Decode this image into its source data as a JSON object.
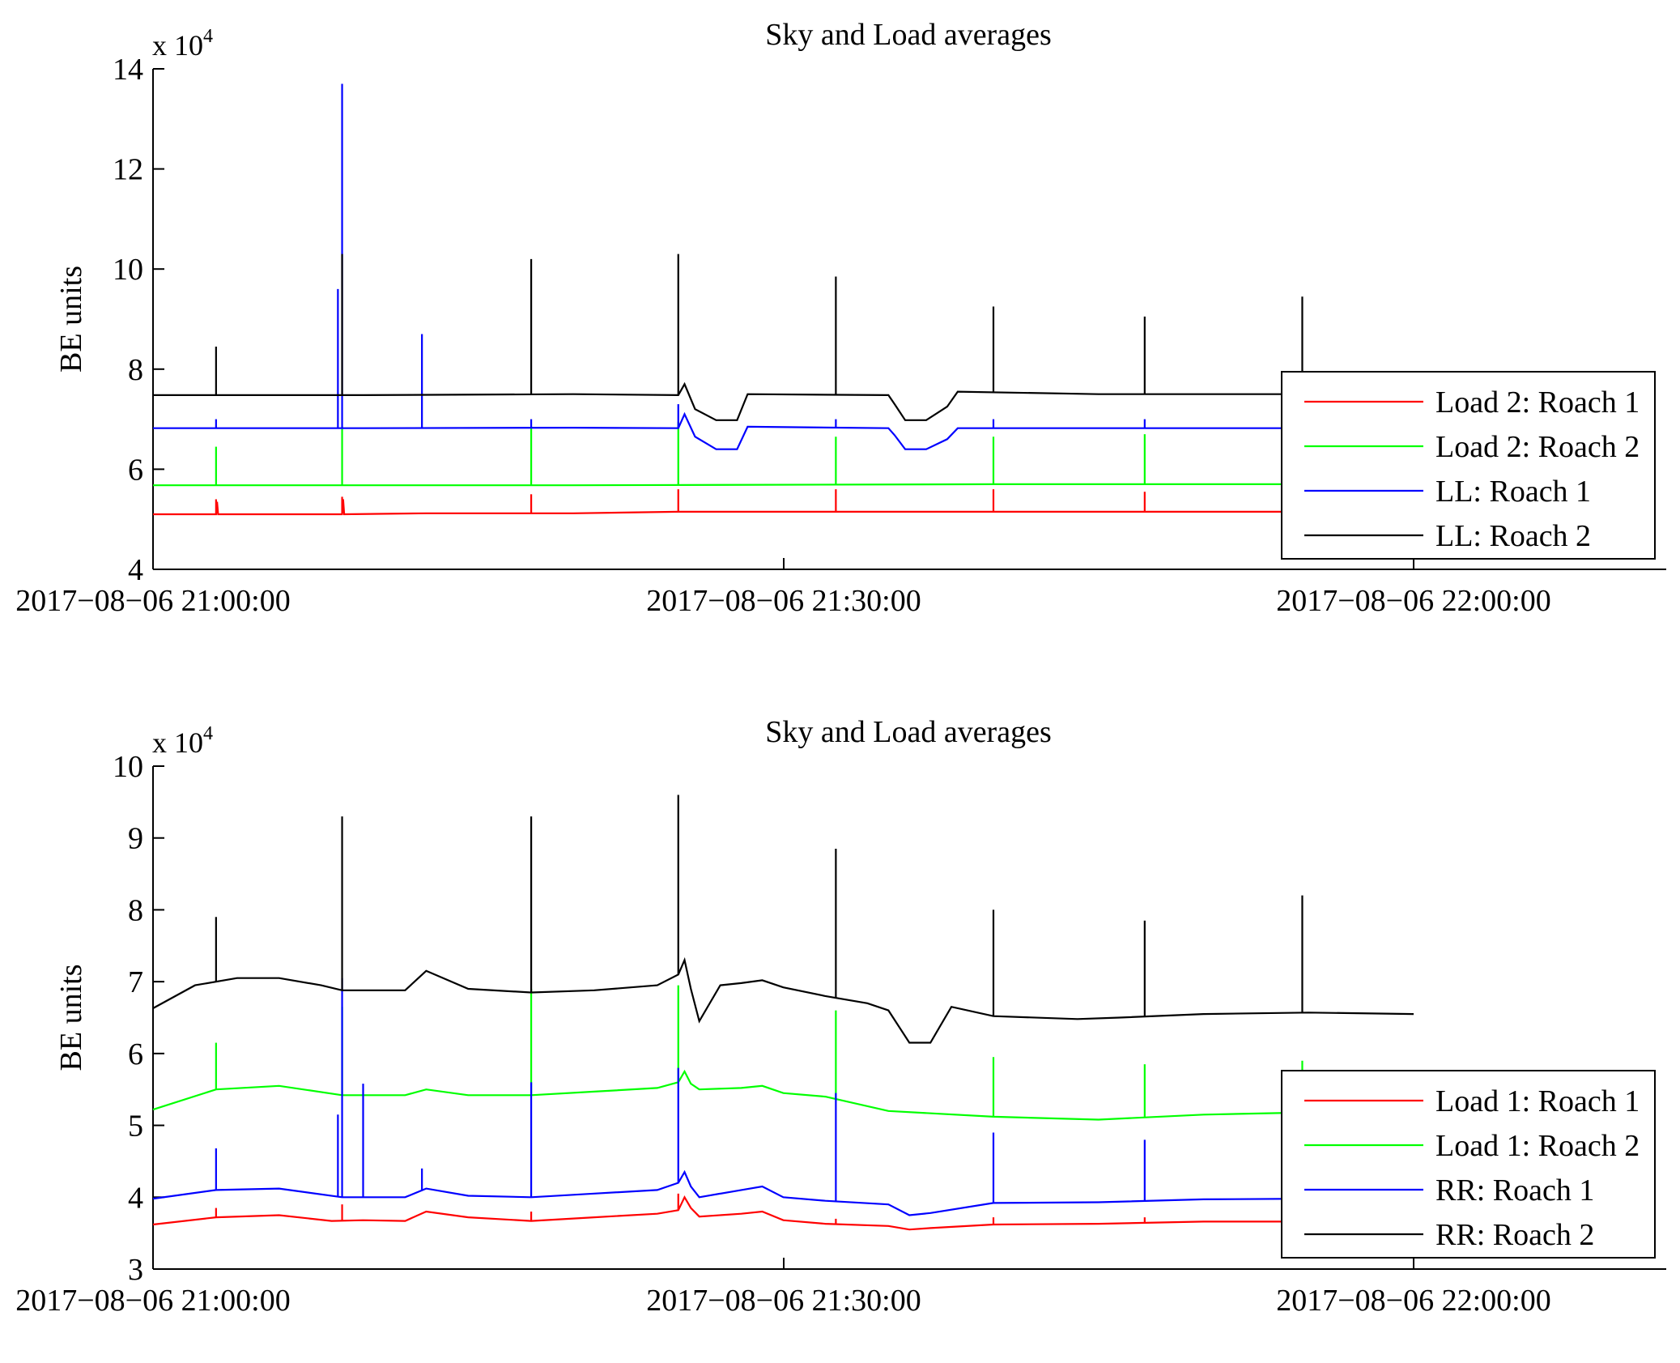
{
  "chart_data": [
    {
      "type": "line",
      "title": "Sky and Load averages",
      "xlabel": "",
      "ylabel": "BE units",
      "y_multiplier": "x 10",
      "y_multiplier_exp": "4",
      "ylim": [
        4,
        14
      ],
      "yticks": [
        "4",
        "6",
        "8",
        "10",
        "12",
        "14"
      ],
      "xlim": [
        "2017-08-06 21:00:00",
        "2017-08-06 22:00:00"
      ],
      "xticks": [
        "2017−08−06 21:00:00",
        "2017−08−06 21:30:00",
        "2017−08−06 22:00:00"
      ],
      "x_unit": "minutes after 2017-08-06 21:00:00",
      "grid": false,
      "legend_position": "bottom-right",
      "series": [
        {
          "name": "Load 2: Roach 1",
          "color": "#ff0000",
          "x": [
            0,
            3,
            3.05,
            3.1,
            9,
            9.05,
            9.1,
            13,
            15,
            20,
            25,
            30,
            40,
            50,
            55,
            60
          ],
          "y": [
            5.1,
            5.1,
            5.35,
            5.1,
            5.1,
            5.4,
            5.1,
            5.12,
            5.12,
            5.12,
            5.15,
            5.15,
            5.15,
            5.15,
            5.15,
            5.15
          ],
          "spikes": [
            [
              3,
              5.4
            ],
            [
              9,
              5.45
            ],
            [
              18,
              5.5
            ],
            [
              25,
              5.6
            ],
            [
              32.5,
              5.6
            ],
            [
              40,
              5.6
            ],
            [
              47.2,
              5.55
            ],
            [
              54.7,
              5.5
            ]
          ]
        },
        {
          "name": "Load 2: Roach 2",
          "color": "#00ff00",
          "x": [
            0,
            20,
            40,
            60
          ],
          "y": [
            5.68,
            5.68,
            5.7,
            5.7
          ],
          "spikes": [
            [
              3,
              6.45
            ],
            [
              9,
              6.85
            ],
            [
              18,
              6.85
            ],
            [
              25,
              6.95
            ],
            [
              32.5,
              6.65
            ],
            [
              40,
              6.65
            ],
            [
              47.2,
              6.7
            ],
            [
              54.7,
              6.6
            ]
          ]
        },
        {
          "name": "LL: Roach 1",
          "color": "#0000ff",
          "x": [
            0,
            10,
            20,
            25,
            25.3,
            25.8,
            26.8,
            27.8,
            28.3,
            35,
            35.3,
            35.8,
            36.8,
            37.8,
            38.3,
            45,
            60
          ],
          "y": [
            6.82,
            6.82,
            6.83,
            6.82,
            7.1,
            6.65,
            6.4,
            6.4,
            6.85,
            6.82,
            6.68,
            6.4,
            6.4,
            6.6,
            6.82,
            6.82,
            6.82
          ],
          "spikes": [
            [
              3,
              7.0
            ],
            [
              8.8,
              9.6
            ],
            [
              9,
              13.7
            ],
            [
              12.8,
              8.7
            ],
            [
              18,
              7.0
            ],
            [
              25,
              7.3
            ],
            [
              32.5,
              7.0
            ],
            [
              40,
              7.0
            ],
            [
              47.2,
              7.0
            ],
            [
              54.7,
              7.0
            ]
          ]
        },
        {
          "name": "LL: Roach 2",
          "color": "#000000",
          "x": [
            0,
            10,
            20,
            25,
            25.3,
            25.8,
            26.8,
            27.8,
            28.3,
            35,
            35.3,
            35.8,
            36.8,
            37.8,
            38.3,
            45,
            60
          ],
          "y": [
            7.48,
            7.48,
            7.5,
            7.48,
            7.7,
            7.2,
            6.98,
            6.98,
            7.5,
            7.48,
            7.3,
            6.98,
            6.98,
            7.25,
            7.55,
            7.5,
            7.5
          ],
          "spikes": [
            [
              3,
              8.45
            ],
            [
              9,
              10.3
            ],
            [
              18,
              10.2
            ],
            [
              25,
              10.3
            ],
            [
              32.5,
              9.85
            ],
            [
              40,
              9.25
            ],
            [
              47.2,
              9.05
            ],
            [
              54.7,
              9.45
            ]
          ]
        }
      ]
    },
    {
      "type": "line",
      "title": "Sky and Load averages",
      "xlabel": "",
      "ylabel": "BE units",
      "y_multiplier": "x 10",
      "y_multiplier_exp": "4",
      "ylim": [
        3,
        10
      ],
      "yticks": [
        "3",
        "4",
        "5",
        "6",
        "7",
        "8",
        "9",
        "10"
      ],
      "xlim": [
        "2017-08-06 21:00:00",
        "2017-08-06 22:00:00"
      ],
      "xticks": [
        "2017−08−06 21:00:00",
        "2017−08−06 21:30:00",
        "2017−08−06 22:00:00"
      ],
      "x_unit": "minutes after 2017-08-06 21:00:00",
      "grid": false,
      "legend_position": "bottom-right",
      "series": [
        {
          "name": "Load 1: Roach 1",
          "color": "#ff0000",
          "x": [
            0,
            3,
            6,
            8.5,
            10,
            12,
            13,
            15,
            18,
            21,
            24,
            25,
            25.3,
            25.6,
            26,
            28,
            29,
            30,
            32,
            35,
            36,
            37,
            40,
            45,
            50,
            55,
            60
          ],
          "y": [
            3.62,
            3.72,
            3.75,
            3.67,
            3.68,
            3.67,
            3.8,
            3.72,
            3.67,
            3.72,
            3.77,
            3.82,
            4.0,
            3.85,
            3.73,
            3.77,
            3.8,
            3.68,
            3.63,
            3.6,
            3.55,
            3.57,
            3.62,
            3.63,
            3.66,
            3.66,
            3.67
          ],
          "spikes": [
            [
              3,
              3.85
            ],
            [
              9,
              3.9
            ],
            [
              18,
              3.8
            ],
            [
              25,
              4.05
            ],
            [
              32.5,
              3.7
            ],
            [
              40,
              3.72
            ],
            [
              47.2,
              3.72
            ],
            [
              54.7,
              3.72
            ]
          ]
        },
        {
          "name": "Load 1: Roach 2",
          "color": "#00ff00",
          "x": [
            0,
            3,
            6,
            9,
            12,
            13,
            15,
            18,
            21,
            24,
            25,
            25.3,
            25.6,
            26,
            28,
            29,
            30,
            32,
            35,
            40,
            45,
            50,
            55,
            60
          ],
          "y": [
            5.22,
            5.5,
            5.55,
            5.42,
            5.42,
            5.5,
            5.42,
            5.42,
            5.47,
            5.52,
            5.6,
            5.75,
            5.58,
            5.5,
            5.52,
            5.55,
            5.45,
            5.4,
            5.2,
            5.12,
            5.08,
            5.15,
            5.18,
            5.18
          ],
          "spikes": [
            [
              3,
              6.15
            ],
            [
              9,
              6.65
            ],
            [
              18,
              6.9
            ],
            [
              25,
              6.95
            ],
            [
              32.5,
              6.6
            ],
            [
              40,
              5.95
            ],
            [
              47.2,
              5.85
            ],
            [
              54.7,
              5.9
            ]
          ]
        },
        {
          "name": "RR: Roach 1",
          "color": "#0000ff",
          "x": [
            0,
            3,
            6,
            9,
            12,
            13,
            15,
            18,
            21,
            24,
            25,
            25.3,
            25.6,
            26,
            28,
            29,
            30,
            32,
            35,
            36,
            37,
            40,
            45,
            50,
            55,
            60
          ],
          "y": [
            3.98,
            4.1,
            4.12,
            4.0,
            4.0,
            4.12,
            4.02,
            4.0,
            4.05,
            4.1,
            4.2,
            4.35,
            4.15,
            4.0,
            4.1,
            4.15,
            4.0,
            3.95,
            3.9,
            3.75,
            3.78,
            3.92,
            3.93,
            3.97,
            3.98,
            3.98
          ],
          "spikes": [
            [
              3,
              4.68
            ],
            [
              8.8,
              5.15
            ],
            [
              9,
              7.05
            ],
            [
              10,
              5.58
            ],
            [
              12.8,
              4.4
            ],
            [
              18,
              5.6
            ],
            [
              25,
              5.8
            ],
            [
              32.5,
              5.45
            ],
            [
              40,
              4.9
            ],
            [
              47.2,
              4.8
            ]
          ]
        },
        {
          "name": "RR: Roach 2",
          "color": "#000000",
          "x": [
            0,
            2,
            4,
            6,
            8,
            9,
            12,
            13,
            15,
            18,
            21,
            24,
            25,
            25.3,
            25.6,
            26,
            27,
            28,
            29,
            30,
            32,
            34,
            35,
            36,
            37,
            38,
            40,
            44,
            46,
            50,
            55,
            60
          ],
          "y": [
            6.63,
            6.95,
            7.05,
            7.05,
            6.95,
            6.88,
            6.88,
            7.15,
            6.9,
            6.85,
            6.88,
            6.95,
            7.1,
            7.3,
            6.9,
            6.45,
            6.95,
            6.98,
            7.02,
            6.92,
            6.8,
            6.7,
            6.6,
            6.15,
            6.15,
            6.65,
            6.52,
            6.48,
            6.5,
            6.55,
            6.57,
            6.55
          ],
          "spikes": [
            [
              3,
              7.9
            ],
            [
              9,
              9.3
            ],
            [
              18,
              9.3
            ],
            [
              25,
              9.6
            ],
            [
              32.5,
              8.85
            ],
            [
              40,
              8.0
            ],
            [
              47.2,
              7.85
            ],
            [
              54.7,
              8.2
            ]
          ]
        }
      ]
    }
  ]
}
